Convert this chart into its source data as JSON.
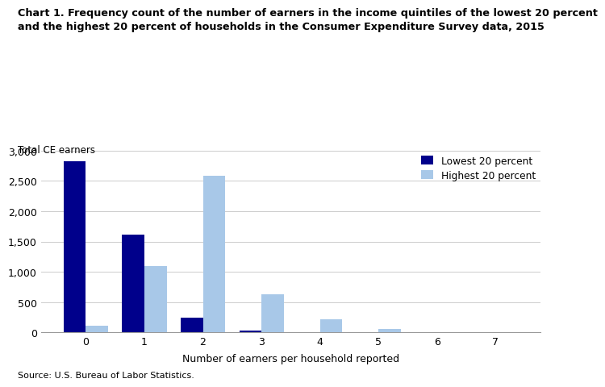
{
  "title": "Chart 1. Frequency count of the number of earners in the income quintiles of the lowest 20 percent\nand the highest 20 percent of households in the Consumer Expenditure Survey data, 2015",
  "ylabel": "Total CE earners",
  "xlabel": "Number of earners per household reported",
  "source": "Source: U.S. Bureau of Labor Statistics.",
  "categories": [
    0,
    1,
    2,
    3,
    4,
    5,
    6,
    7
  ],
  "lowest_20": [
    2820,
    1610,
    245,
    30,
    0,
    0,
    0,
    0
  ],
  "highest_20": [
    110,
    1090,
    2590,
    630,
    215,
    55,
    0,
    0
  ],
  "color_lowest": "#00008B",
  "color_highest": "#A8C8E8",
  "legend_lowest": "Lowest 20 percent",
  "legend_highest": "Highest 20 percent",
  "ylim": [
    0,
    3000
  ],
  "yticks": [
    0,
    500,
    1000,
    1500,
    2000,
    2500,
    3000
  ],
  "bar_width": 0.38
}
